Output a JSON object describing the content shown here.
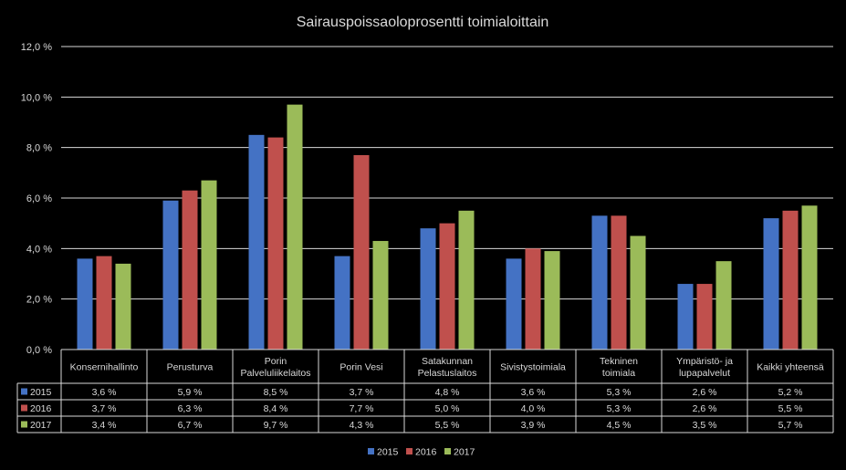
{
  "chart_data": {
    "type": "bar",
    "title": "Sairauspoissaoloprosentti toimialoittain",
    "categories": [
      [
        "Konsernihallinto"
      ],
      [
        "Perusturva"
      ],
      [
        "Porin",
        "Palveluliikelaitos"
      ],
      [
        "Porin Vesi"
      ],
      [
        "Satakunnan",
        "Pelastuslaitos"
      ],
      [
        "Sivistystoimiala"
      ],
      [
        "Tekninen",
        "toimiala"
      ],
      [
        "Ympäristö- ja",
        "lupapalvelut"
      ],
      [
        "Kaikki yhteensä"
      ]
    ],
    "series": [
      {
        "name": "2015",
        "color": "#4472c4",
        "values": [
          3.6,
          5.9,
          8.5,
          3.7,
          4.8,
          3.6,
          5.3,
          2.6,
          5.2
        ],
        "labels": [
          "3,6 %",
          "5,9 %",
          "8,5 %",
          "3,7 %",
          "4,8 %",
          "3,6 %",
          "5,3 %",
          "2,6 %",
          "5,2 %"
        ]
      },
      {
        "name": "2016",
        "color": "#c0504d",
        "values": [
          3.7,
          6.3,
          8.4,
          7.7,
          5.0,
          4.0,
          5.3,
          2.6,
          5.5
        ],
        "labels": [
          "3,7 %",
          "6,3 %",
          "8,4 %",
          "7,7 %",
          "5,0 %",
          "4,0 %",
          "5,3 %",
          "2,6 %",
          "5,5 %"
        ]
      },
      {
        "name": "2017",
        "color": "#9bbb59",
        "values": [
          3.4,
          6.7,
          9.7,
          4.3,
          5.5,
          3.9,
          4.5,
          3.5,
          5.7
        ],
        "labels": [
          "3,4 %",
          "6,7 %",
          "9,7 %",
          "4,3 %",
          "5,5 %",
          "3,9 %",
          "4,5 %",
          "3,5 %",
          "5,7 %"
        ]
      }
    ],
    "ylim": [
      0,
      12
    ],
    "yticks": [
      "0,0 %",
      "2,0 %",
      "4,0 %",
      "6,0 %",
      "8,0 %",
      "10,0 %",
      "12,0 %"
    ],
    "grid": true,
    "data_table": true,
    "legend_position": "bottom",
    "legend": [
      "2015",
      "2016",
      "2017"
    ],
    "colors": {
      "background": "#000000",
      "text": "#d9d9d9",
      "grid": "#d9d9d9"
    }
  }
}
